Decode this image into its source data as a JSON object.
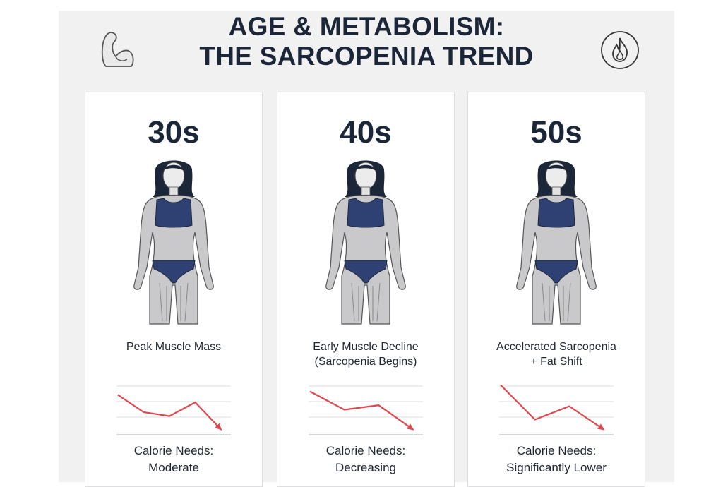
{
  "title_line1": "AGE & METABOLISM:",
  "title_line2": "THE SARCOPENIA TREND",
  "icons": {
    "left": "flexed-arm-icon",
    "right": "flame-icon"
  },
  "colors": {
    "navy": "#1b2638",
    "outfit": "#2f4173",
    "trend": "#e0474c"
  },
  "cards": [
    {
      "age": "30s",
      "caption1": "Peak Muscle Mass",
      "caption2": "",
      "cal1": "Calorie Needs:",
      "cal2": "Moderate",
      "trend_values": [
        85,
        50,
        42,
        70,
        15
      ]
    },
    {
      "age": "40s",
      "caption1": "Early Muscle Decline",
      "caption2": "(Sarcopenia Begins)",
      "cal1": "Calorie Needs:",
      "cal2": "Decreasing",
      "trend_values": [
        92,
        55,
        64,
        15
      ]
    },
    {
      "age": "50s",
      "caption1": "Accelerated Sarcopenia",
      "caption2": "+ Fat Shift",
      "cal1": "Calorie Needs:",
      "cal2": "Significantly Lower",
      "trend_values": [
        105,
        35,
        62,
        15
      ]
    }
  ]
}
